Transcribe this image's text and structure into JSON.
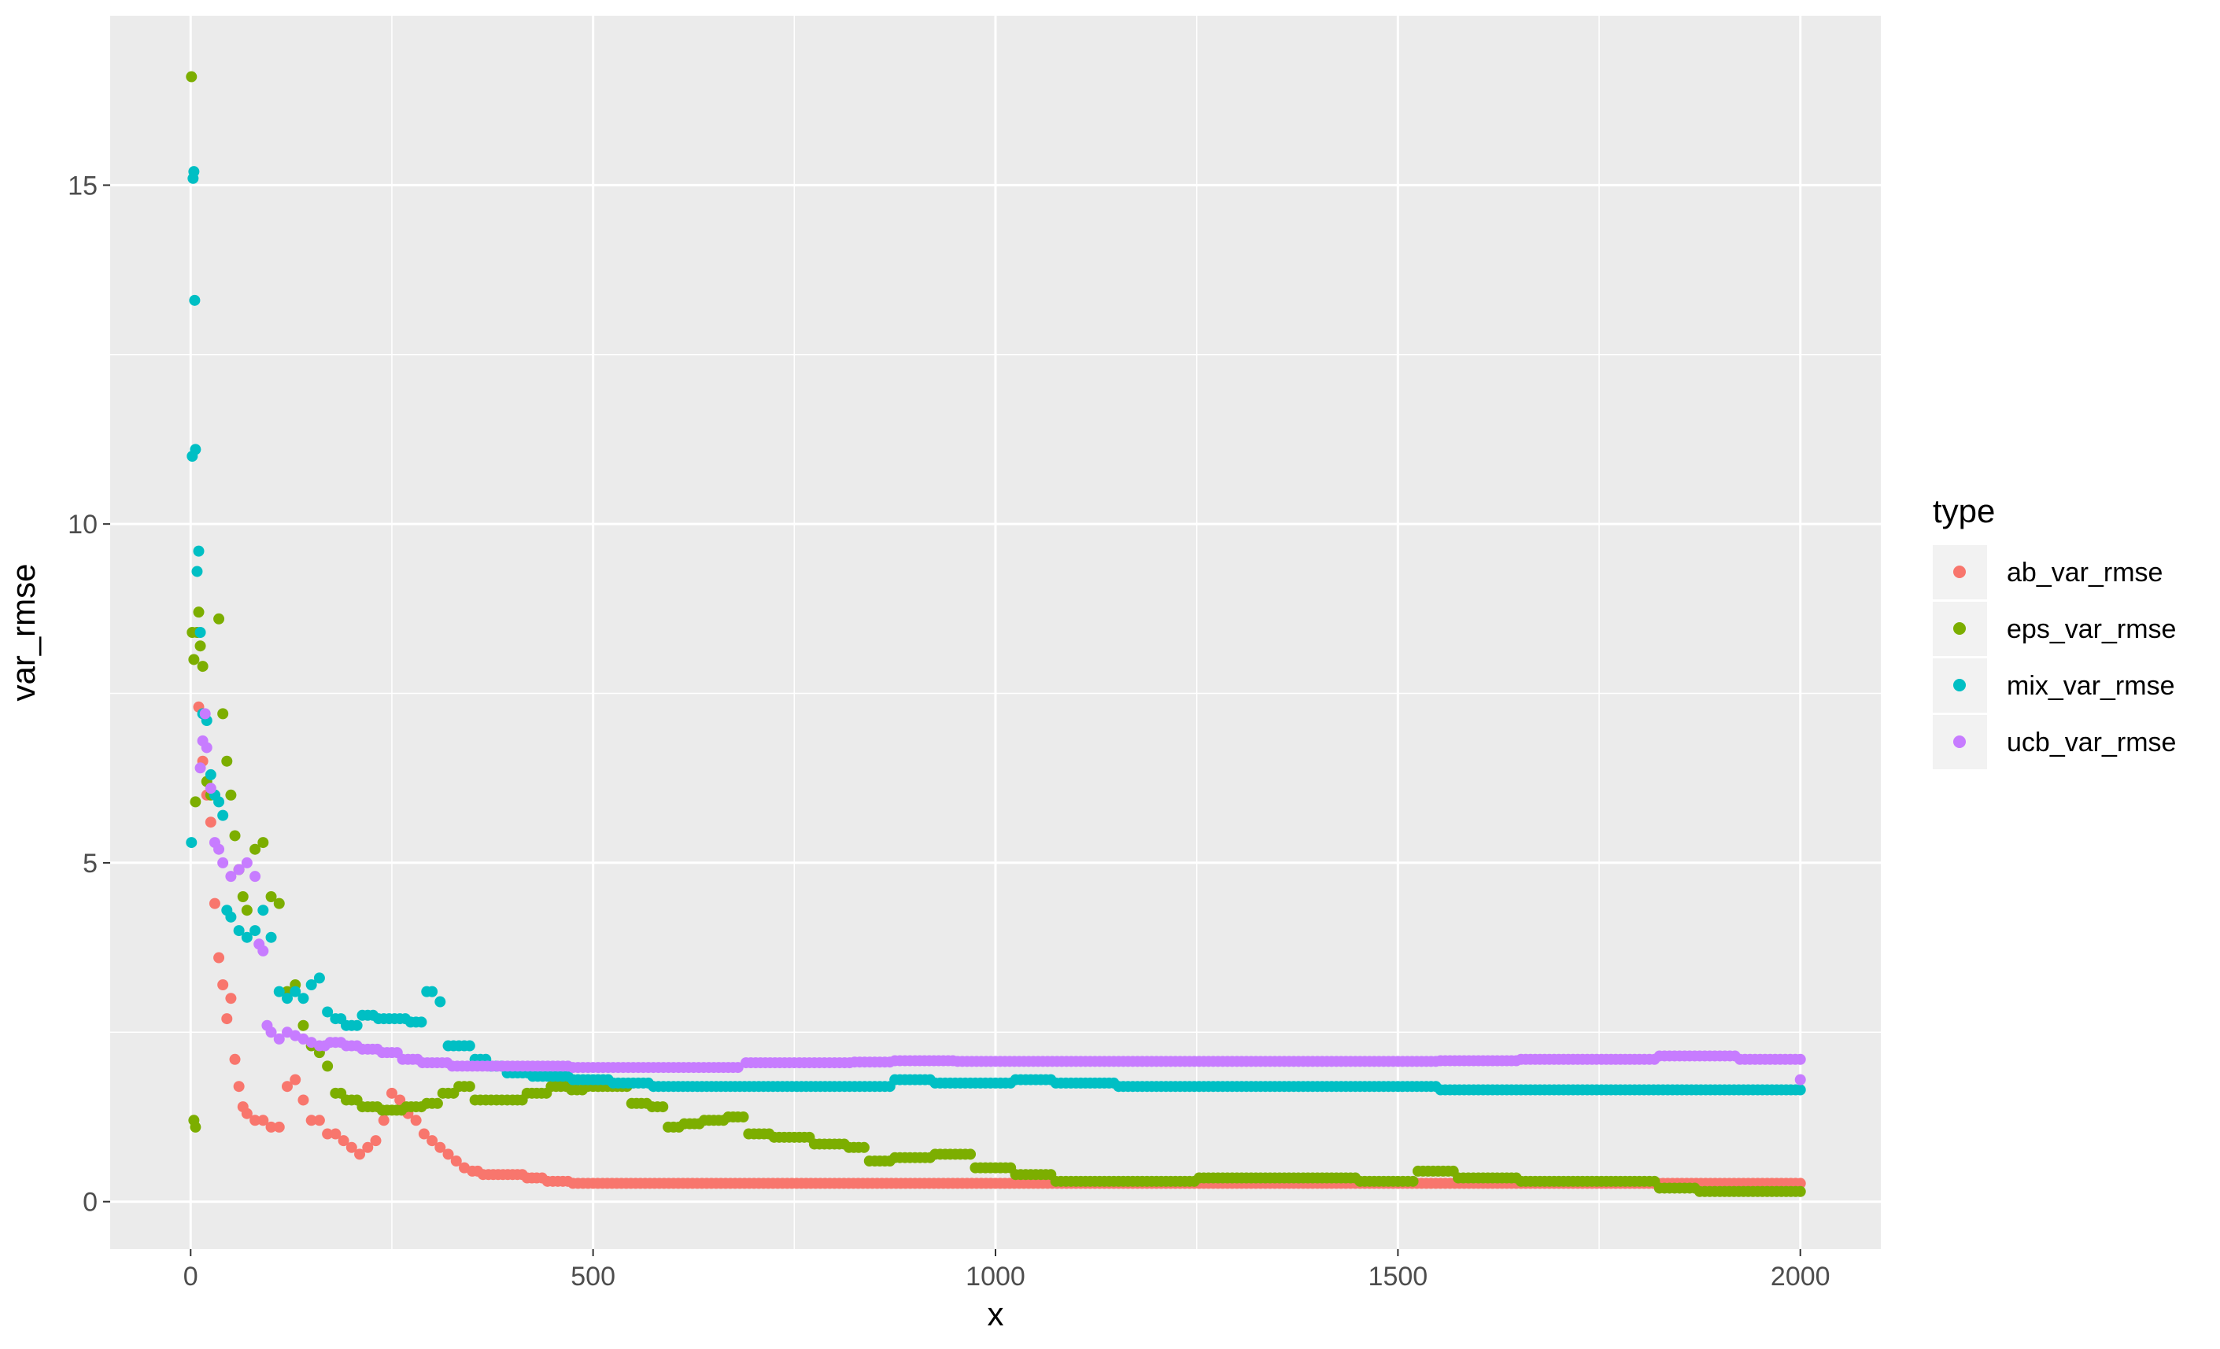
{
  "chart_data": {
    "type": "scatter",
    "title": "",
    "xlabel": "x",
    "ylabel": "var_rmse",
    "xlim": [
      -100,
      2100
    ],
    "ylim": [
      -0.7,
      17.5
    ],
    "x_ticks": [
      0,
      500,
      1000,
      1500,
      2000
    ],
    "x_tick_labels": [
      "0",
      "500",
      "1000",
      "1500",
      "2000"
    ],
    "y_ticks": [
      0,
      5,
      10,
      15
    ],
    "y_tick_labels": [
      "0",
      "5",
      "10",
      "15"
    ],
    "grid": true,
    "legend": {
      "title": "type",
      "placement": "right",
      "entries": [
        "ab_var_rmse",
        "eps_var_rmse",
        "mix_var_rmse",
        "ucb_var_rmse"
      ]
    },
    "series": [
      {
        "name": "ab_var_rmse",
        "color": "#F8766D",
        "points": [
          [
            10,
            7.3
          ],
          [
            15,
            6.5
          ],
          [
            20,
            6.0
          ],
          [
            25,
            5.6
          ],
          [
            30,
            4.4
          ],
          [
            35,
            3.6
          ],
          [
            40,
            3.2
          ],
          [
            45,
            2.7
          ],
          [
            50,
            3.0
          ],
          [
            55,
            2.1
          ],
          [
            60,
            1.7
          ],
          [
            65,
            1.4
          ],
          [
            70,
            1.3
          ],
          [
            80,
            1.2
          ],
          [
            90,
            1.2
          ],
          [
            100,
            1.1
          ],
          [
            110,
            1.1
          ],
          [
            120,
            1.7
          ],
          [
            130,
            1.8
          ],
          [
            140,
            1.5
          ],
          [
            150,
            1.2
          ],
          [
            160,
            1.2
          ],
          [
            170,
            1.0
          ],
          [
            180,
            1.0
          ],
          [
            190,
            0.9
          ],
          [
            200,
            0.8
          ],
          [
            210,
            0.7
          ],
          [
            220,
            0.8
          ],
          [
            230,
            0.9
          ],
          [
            240,
            1.2
          ],
          [
            250,
            1.6
          ],
          [
            260,
            1.5
          ],
          [
            270,
            1.3
          ],
          [
            280,
            1.2
          ],
          [
            290,
            1.0
          ],
          [
            300,
            0.9
          ],
          [
            310,
            0.8
          ],
          [
            320,
            0.7
          ],
          [
            330,
            0.6
          ],
          [
            340,
            0.5
          ],
          [
            350,
            0.45
          ],
          [
            370,
            0.4
          ],
          [
            400,
            0.4
          ],
          [
            430,
            0.35
          ],
          [
            450,
            0.3
          ],
          [
            500,
            0.27
          ],
          [
            600,
            0.27
          ],
          [
            700,
            0.27
          ],
          [
            800,
            0.27
          ],
          [
            900,
            0.27
          ],
          [
            1000,
            0.27
          ],
          [
            1100,
            0.27
          ],
          [
            1200,
            0.27
          ],
          [
            1300,
            0.27
          ],
          [
            1400,
            0.27
          ],
          [
            1500,
            0.27
          ],
          [
            1600,
            0.27
          ],
          [
            1700,
            0.27
          ],
          [
            1800,
            0.27
          ],
          [
            1900,
            0.27
          ],
          [
            2000,
            0.27
          ]
        ]
      },
      {
        "name": "eps_var_rmse",
        "color": "#7CAE00",
        "points": [
          [
            1,
            16.6
          ],
          [
            2,
            8.4
          ],
          [
            4,
            8.0
          ],
          [
            6,
            5.9
          ],
          [
            4,
            1.2
          ],
          [
            6,
            1.1
          ],
          [
            8,
            8.4
          ],
          [
            10,
            8.7
          ],
          [
            12,
            8.2
          ],
          [
            15,
            7.9
          ],
          [
            20,
            6.2
          ],
          [
            25,
            6.0
          ],
          [
            30,
            6.0
          ],
          [
            35,
            8.6
          ],
          [
            40,
            7.2
          ],
          [
            45,
            6.5
          ],
          [
            50,
            6.0
          ],
          [
            55,
            5.4
          ],
          [
            60,
            4.9
          ],
          [
            65,
            4.5
          ],
          [
            70,
            4.3
          ],
          [
            80,
            5.2
          ],
          [
            90,
            5.3
          ],
          [
            100,
            4.5
          ],
          [
            110,
            4.4
          ],
          [
            120,
            3.1
          ],
          [
            130,
            3.2
          ],
          [
            140,
            2.6
          ],
          [
            150,
            2.3
          ],
          [
            160,
            2.2
          ],
          [
            170,
            2.0
          ],
          [
            180,
            1.6
          ],
          [
            200,
            1.5
          ],
          [
            220,
            1.4
          ],
          [
            250,
            1.35
          ],
          [
            280,
            1.4
          ],
          [
            300,
            1.45
          ],
          [
            320,
            1.6
          ],
          [
            340,
            1.7
          ],
          [
            360,
            1.5
          ],
          [
            400,
            1.5
          ],
          [
            430,
            1.6
          ],
          [
            460,
            1.7
          ],
          [
            480,
            1.65
          ],
          [
            500,
            1.7
          ],
          [
            530,
            1.7
          ],
          [
            560,
            1.45
          ],
          [
            580,
            1.4
          ],
          [
            600,
            1.1
          ],
          [
            620,
            1.15
          ],
          [
            650,
            1.2
          ],
          [
            680,
            1.25
          ],
          [
            700,
            1.0
          ],
          [
            750,
            0.95
          ],
          [
            800,
            0.85
          ],
          [
            830,
            0.8
          ],
          [
            850,
            0.6
          ],
          [
            900,
            0.65
          ],
          [
            950,
            0.7
          ],
          [
            1000,
            0.5
          ],
          [
            1050,
            0.4
          ],
          [
            1100,
            0.3
          ],
          [
            1200,
            0.3
          ],
          [
            1300,
            0.35
          ],
          [
            1400,
            0.35
          ],
          [
            1500,
            0.3
          ],
          [
            1550,
            0.45
          ],
          [
            1600,
            0.35
          ],
          [
            1700,
            0.3
          ],
          [
            1800,
            0.3
          ],
          [
            1850,
            0.2
          ],
          [
            1900,
            0.15
          ],
          [
            2000,
            0.15
          ]
        ]
      },
      {
        "name": "mix_var_rmse",
        "color": "#00BFC4",
        "points": [
          [
            1,
            5.3
          ],
          [
            2,
            11.0
          ],
          [
            3,
            15.1
          ],
          [
            4,
            15.2
          ],
          [
            5,
            13.3
          ],
          [
            6,
            11.1
          ],
          [
            8,
            9.3
          ],
          [
            10,
            9.6
          ],
          [
            12,
            8.4
          ],
          [
            15,
            7.2
          ],
          [
            20,
            7.1
          ],
          [
            25,
            6.3
          ],
          [
            30,
            6.0
          ],
          [
            35,
            5.9
          ],
          [
            40,
            5.7
          ],
          [
            45,
            4.3
          ],
          [
            50,
            4.2
          ],
          [
            60,
            4.0
          ],
          [
            70,
            3.9
          ],
          [
            80,
            4.0
          ],
          [
            90,
            4.3
          ],
          [
            100,
            3.9
          ],
          [
            110,
            3.1
          ],
          [
            120,
            3.0
          ],
          [
            130,
            3.1
          ],
          [
            140,
            3.0
          ],
          [
            150,
            3.2
          ],
          [
            160,
            3.3
          ],
          [
            170,
            2.8
          ],
          [
            180,
            2.7
          ],
          [
            200,
            2.6
          ],
          [
            220,
            2.75
          ],
          [
            240,
            2.7
          ],
          [
            260,
            2.7
          ],
          [
            280,
            2.65
          ],
          [
            300,
            3.1
          ],
          [
            310,
            2.95
          ],
          [
            320,
            2.3
          ],
          [
            340,
            2.3
          ],
          [
            360,
            2.1
          ],
          [
            380,
            2.0
          ],
          [
            400,
            1.9
          ],
          [
            450,
            1.85
          ],
          [
            500,
            1.8
          ],
          [
            550,
            1.75
          ],
          [
            600,
            1.7
          ],
          [
            700,
            1.7
          ],
          [
            800,
            1.7
          ],
          [
            850,
            1.7
          ],
          [
            900,
            1.8
          ],
          [
            950,
            1.75
          ],
          [
            1000,
            1.75
          ],
          [
            1050,
            1.8
          ],
          [
            1100,
            1.75
          ],
          [
            1200,
            1.7
          ],
          [
            1300,
            1.7
          ],
          [
            1400,
            1.7
          ],
          [
            1500,
            1.7
          ],
          [
            1600,
            1.65
          ],
          [
            1700,
            1.65
          ],
          [
            1800,
            1.65
          ],
          [
            1900,
            1.65
          ],
          [
            2000,
            1.65
          ]
        ]
      },
      {
        "name": "ucb_var_rmse",
        "color": "#C77CFF",
        "points": [
          [
            12,
            6.4
          ],
          [
            15,
            6.8
          ],
          [
            18,
            7.2
          ],
          [
            20,
            6.7
          ],
          [
            25,
            6.1
          ],
          [
            30,
            5.3
          ],
          [
            35,
            5.2
          ],
          [
            40,
            5.0
          ],
          [
            50,
            4.8
          ],
          [
            60,
            4.9
          ],
          [
            70,
            5.0
          ],
          [
            80,
            4.8
          ],
          [
            85,
            3.8
          ],
          [
            90,
            3.7
          ],
          [
            95,
            2.6
          ],
          [
            100,
            2.5
          ],
          [
            110,
            2.4
          ],
          [
            120,
            2.5
          ],
          [
            130,
            2.45
          ],
          [
            140,
            2.4
          ],
          [
            150,
            2.35
          ],
          [
            160,
            2.3
          ],
          [
            180,
            2.35
          ],
          [
            200,
            2.3
          ],
          [
            220,
            2.25
          ],
          [
            250,
            2.2
          ],
          [
            270,
            2.1
          ],
          [
            300,
            2.05
          ],
          [
            350,
            2.0
          ],
          [
            400,
            2.0
          ],
          [
            450,
            2.0
          ],
          [
            500,
            1.98
          ],
          [
            550,
            1.98
          ],
          [
            600,
            1.98
          ],
          [
            650,
            1.98
          ],
          [
            680,
            1.98
          ],
          [
            690,
            2.05
          ],
          [
            750,
            2.05
          ],
          [
            800,
            2.05
          ],
          [
            850,
            2.06
          ],
          [
            900,
            2.08
          ],
          [
            1000,
            2.07
          ],
          [
            1100,
            2.07
          ],
          [
            1200,
            2.07
          ],
          [
            1300,
            2.07
          ],
          [
            1400,
            2.07
          ],
          [
            1500,
            2.07
          ],
          [
            1600,
            2.08
          ],
          [
            1700,
            2.1
          ],
          [
            1800,
            2.1
          ],
          [
            1850,
            2.15
          ],
          [
            1900,
            2.15
          ],
          [
            1950,
            2.1
          ],
          [
            2000,
            2.1
          ],
          [
            2000,
            1.8
          ]
        ]
      }
    ]
  }
}
